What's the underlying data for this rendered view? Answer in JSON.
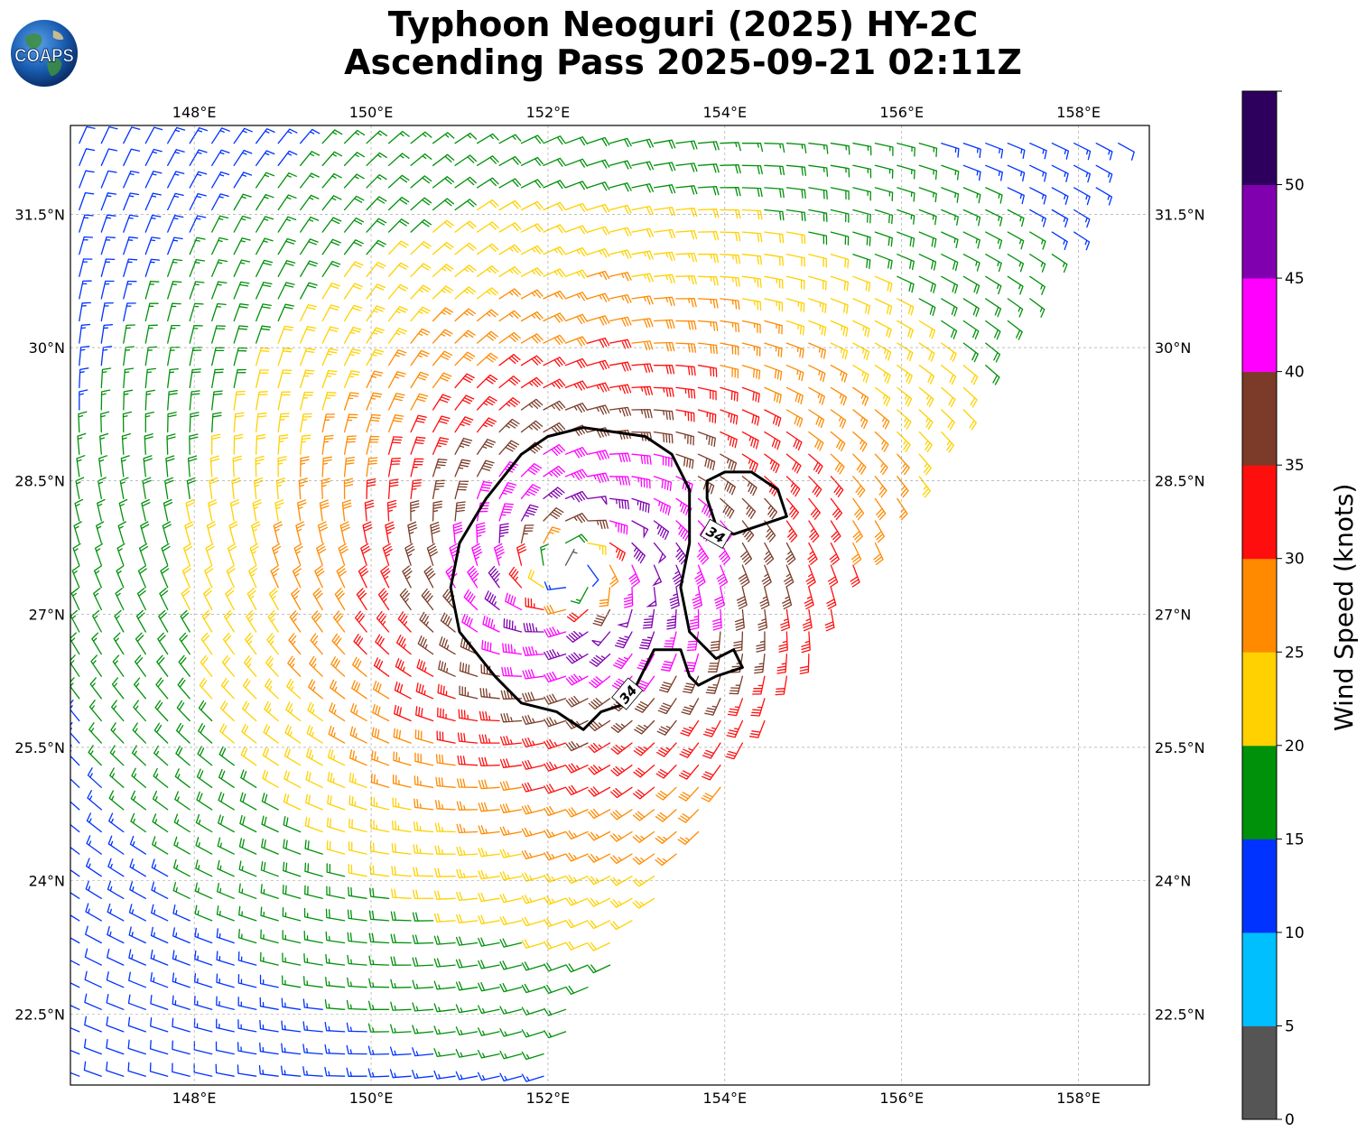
{
  "title": {
    "line1": "Typhoon Neoguri (2025) HY-2C",
    "line2": "Ascending Pass 2025-09-21 02:11Z"
  },
  "logo": {
    "text": "COAPS",
    "icon": "globe-icon"
  },
  "map": {
    "projection": "equirectangular",
    "lon_range": [
      146.6,
      158.8
    ],
    "lat_range": [
      21.7,
      32.5
    ],
    "lon_ticks": [
      148,
      150,
      152,
      154,
      156,
      158
    ],
    "lat_ticks": [
      22.5,
      24,
      25.5,
      27,
      28.5,
      30,
      31.5
    ],
    "lon_tick_labels": [
      "148°E",
      "150°E",
      "152°E",
      "154°E",
      "156°E",
      "158°E"
    ],
    "lat_tick_labels": [
      "22.5°N",
      "24°N",
      "25.5°N",
      "27°N",
      "28.5°N",
      "30°N",
      "31.5°N"
    ],
    "grid": true,
    "storm_center": {
      "lon": 152.25,
      "lat": 27.5
    },
    "swath_right_edge": [
      [
        158.6,
        32.3
      ],
      [
        151.9,
        21.7
      ]
    ],
    "contour": {
      "level": 34,
      "label": "34",
      "main": [
        [
          152.4,
          29.1
        ],
        [
          153.1,
          29.0
        ],
        [
          153.4,
          28.8
        ],
        [
          153.6,
          28.4
        ],
        [
          153.6,
          27.8
        ],
        [
          153.5,
          27.3
        ],
        [
          153.6,
          26.8
        ],
        [
          153.9,
          26.5
        ],
        [
          154.1,
          26.6
        ],
        [
          154.2,
          26.4
        ],
        [
          153.9,
          26.3
        ],
        [
          153.7,
          26.2
        ],
        [
          153.6,
          26.3
        ],
        [
          153.5,
          26.6
        ],
        [
          153.2,
          26.6
        ],
        [
          152.9,
          26.0
        ],
        [
          152.6,
          25.9
        ],
        [
          152.4,
          25.7
        ],
        [
          152.1,
          25.9
        ],
        [
          151.7,
          26.0
        ],
        [
          151.4,
          26.3
        ],
        [
          151.0,
          26.8
        ],
        [
          150.9,
          27.3
        ],
        [
          151.0,
          27.8
        ],
        [
          151.3,
          28.3
        ],
        [
          151.7,
          28.8
        ],
        [
          152.0,
          29.0
        ],
        [
          152.4,
          29.1
        ]
      ],
      "main_label_pos": [
        152.9,
        26.1
      ],
      "secondary": [
        [
          153.8,
          28.5
        ],
        [
          154.0,
          28.6
        ],
        [
          154.3,
          28.6
        ],
        [
          154.6,
          28.4
        ],
        [
          154.7,
          28.1
        ],
        [
          154.4,
          28.0
        ],
        [
          154.1,
          27.9
        ],
        [
          153.9,
          28.0
        ],
        [
          153.8,
          28.3
        ],
        [
          153.8,
          28.5
        ]
      ],
      "secondary_label_pos": [
        153.9,
        27.9
      ]
    }
  },
  "colorbar": {
    "title": "Wind Speed (knots)",
    "ticks": [
      "0",
      "5",
      "10",
      "15",
      "20",
      "25",
      "30",
      "35",
      "40",
      "45",
      "50"
    ],
    "bins": [
      {
        "range": [
          0,
          5
        ],
        "color": "#555555"
      },
      {
        "range": [
          5,
          10
        ],
        "color": "#00bfff"
      },
      {
        "range": [
          10,
          15
        ],
        "color": "#0033ff"
      },
      {
        "range": [
          15,
          20
        ],
        "color": "#00910a"
      },
      {
        "range": [
          20,
          25
        ],
        "color": "#ffd100"
      },
      {
        "range": [
          25,
          30
        ],
        "color": "#ff8a00"
      },
      {
        "range": [
          30,
          35
        ],
        "color": "#ff0e0e"
      },
      {
        "range": [
          35,
          40
        ],
        "color": "#7b3b28"
      },
      {
        "range": [
          40,
          45
        ],
        "color": "#ff00ff"
      },
      {
        "range": [
          45,
          50
        ],
        "color": "#8000b0"
      },
      {
        "range": [
          50,
          55
        ],
        "color": "#2d005e"
      }
    ]
  },
  "wind_field": {
    "description_units": "knots",
    "peak_kt": 48,
    "rmax_deg": 0.75,
    "decay_deg": 3.2,
    "background_kt": 6,
    "inflow_deg": 20
  }
}
